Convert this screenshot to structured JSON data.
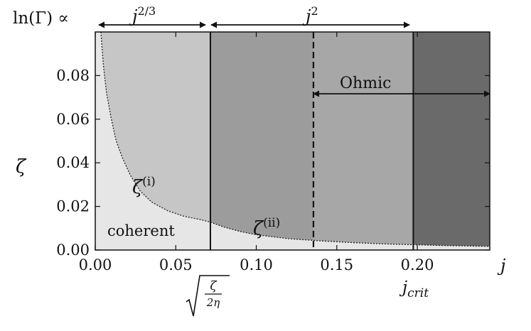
{
  "chart_data": {
    "type": "area",
    "x": {
      "label": "j",
      "ticks": [
        "0.00",
        "0.05",
        "0.10",
        "0.15",
        "0.20"
      ],
      "tick_values": [
        0.0,
        0.05,
        0.1,
        0.15,
        0.2
      ],
      "range": [
        0.0,
        0.245
      ]
    },
    "y": {
      "label": "ζ",
      "ticks": [
        "0.00",
        "0.02",
        "0.04",
        "0.06",
        "0.08"
      ],
      "tick_values": [
        0.0,
        0.02,
        0.04,
        0.06,
        0.08
      ],
      "range": [
        0.0,
        0.1
      ]
    },
    "grid": false,
    "boundaries": {
      "sqrt_zeta_2eta": 0.0715,
      "ohmic_start": 0.1355,
      "j_crit": 0.1975
    },
    "region_colors": {
      "coherent": "#e6e6e6",
      "zone1": "#c6c6c6",
      "zone2": "#9c9c9c",
      "zone3": "#a7a7a7",
      "zone4": "#6a6a6a"
    },
    "curve_zeta_i": [
      [
        0.0035,
        0.1
      ],
      [
        0.005,
        0.085
      ],
      [
        0.007,
        0.072
      ],
      [
        0.01,
        0.06
      ],
      [
        0.013,
        0.05
      ],
      [
        0.017,
        0.042
      ],
      [
        0.022,
        0.034
      ],
      [
        0.028,
        0.027
      ],
      [
        0.035,
        0.022
      ],
      [
        0.045,
        0.018
      ],
      [
        0.055,
        0.0155
      ],
      [
        0.065,
        0.014
      ],
      [
        0.0715,
        0.0128
      ]
    ],
    "curve_zeta_ii": [
      [
        0.0715,
        0.0128
      ],
      [
        0.08,
        0.0105
      ],
      [
        0.09,
        0.0085
      ],
      [
        0.1,
        0.007
      ],
      [
        0.12,
        0.0052
      ],
      [
        0.14,
        0.0042
      ],
      [
        0.16,
        0.0034
      ],
      [
        0.18,
        0.0028
      ],
      [
        0.2,
        0.0024
      ],
      [
        0.22,
        0.002
      ],
      [
        0.245,
        0.0017
      ]
    ],
    "annotations": {
      "ylead": "ln(Γ) ∝",
      "p1_base": "j",
      "p1_exp": "2/3",
      "p2_base": "j",
      "p2_exp": "2",
      "ohmic": "Ohmic",
      "zeta_i_base": "ζ",
      "zeta_i_sup": "(i)",
      "zeta_ii_base": "ζ",
      "zeta_ii_sup": "(ii)",
      "coherent": "coherent",
      "sqrt_num": "ζ",
      "sqrt_den": "2η",
      "jcrit_base": "j",
      "jcrit_sub": "crit"
    }
  }
}
